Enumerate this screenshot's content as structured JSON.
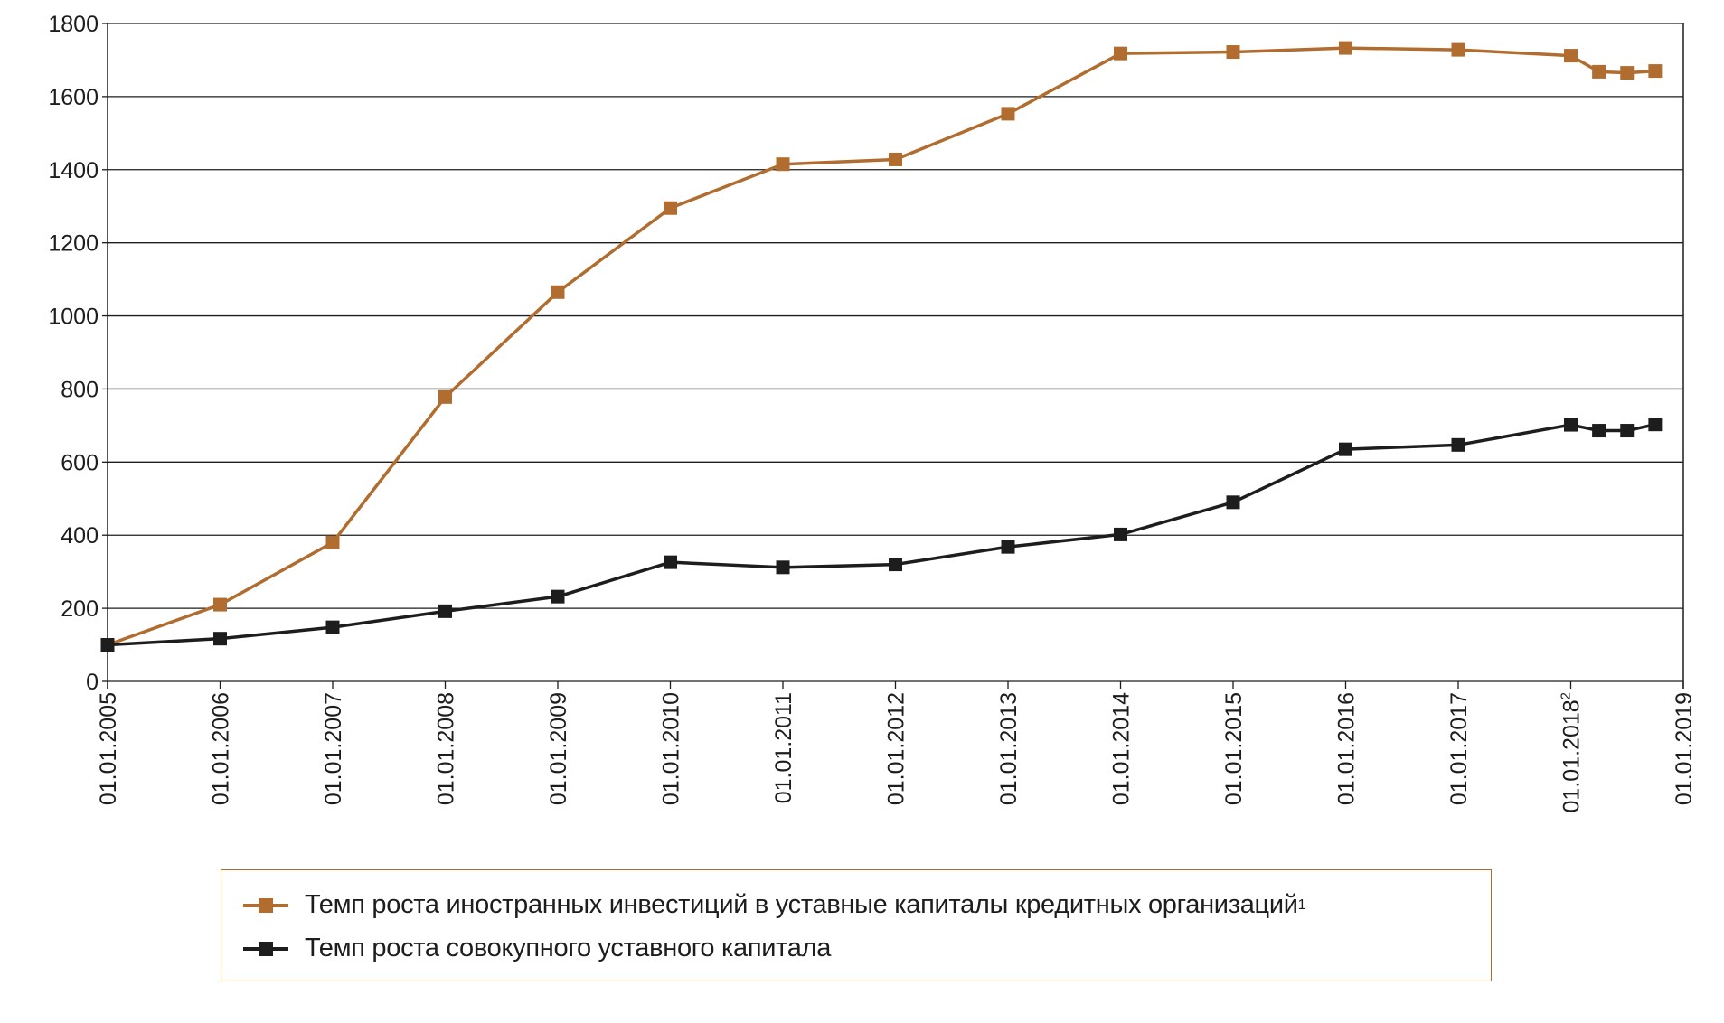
{
  "chart_data": {
    "type": "line",
    "title": "",
    "xlabel": "",
    "ylabel": "",
    "ylim": [
      0,
      1800
    ],
    "yticks": [
      "0",
      "200",
      "400",
      "600",
      "800",
      "1000",
      "1200",
      "1400",
      "1600",
      "1800"
    ],
    "xlim": [
      2005,
      2019
    ],
    "xtick_labels": [
      "01.01.2005",
      "01.01.2006",
      "01.01.2007",
      "01.01.2008",
      "01.01.2009",
      "01.01.2010",
      "01.01.2011",
      "01.01.2012",
      "01.01.2013",
      "01.01.2014",
      "01.01.2015",
      "01.01.2016",
      "01.01.2017",
      "01.01.2018",
      "01.01.2019"
    ],
    "xtick_superscripts": {
      "13": "2"
    },
    "x": [
      2005,
      2006,
      2007,
      2008,
      2009,
      2010,
      2011,
      2012,
      2013,
      2014,
      2015,
      2016,
      2017,
      2018,
      2018.25,
      2018.5,
      2018.75
    ],
    "grid": true,
    "legend_position": "bottom",
    "series": [
      {
        "name": "Темп роста иностранных инвестиций в уставные капиталы кредитных организаций",
        "superscript": "1",
        "color": "#b06d2f",
        "values": [
          100,
          210,
          380,
          778,
          1065,
          1295,
          1415,
          1428,
          1553,
          1718,
          1722,
          1733,
          1728,
          1712,
          1668,
          1665,
          1670
        ]
      },
      {
        "name": "Темп роста совокупного уставного капитала",
        "superscript": "",
        "color": "#1d1d1d",
        "values": [
          100,
          117,
          148,
          192,
          232,
          326,
          312,
          320,
          368,
          402,
          490,
          635,
          647,
          702,
          686,
          686,
          703
        ]
      }
    ]
  }
}
